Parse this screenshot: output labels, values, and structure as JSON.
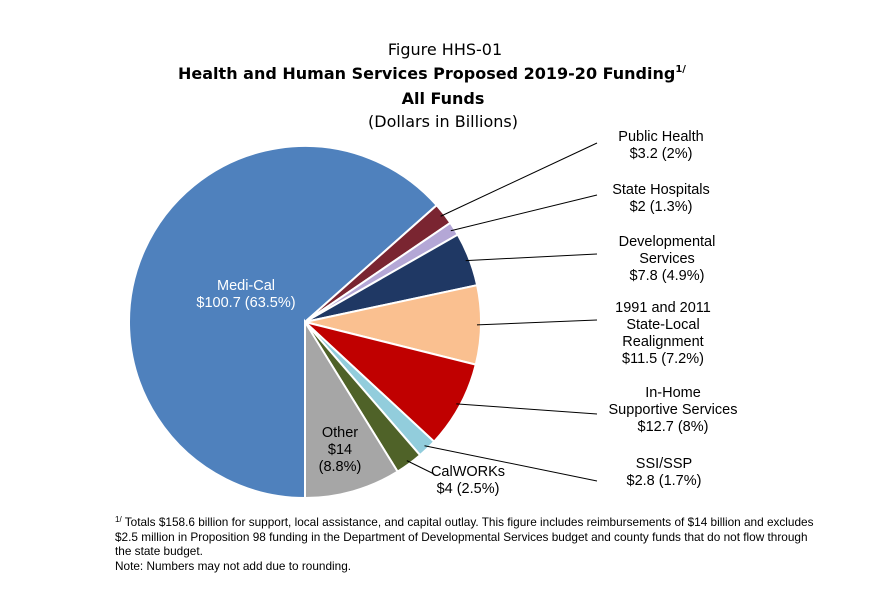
{
  "chart_data": {
    "type": "pie",
    "figure_label": "Figure HHS-01",
    "title": "Health and Human Services Proposed 2019-20 Funding",
    "title_superscript": "1/",
    "subtitle": "All Funds",
    "units": "(Dollars in Billions)",
    "slices": [
      {
        "id": "medi-cal",
        "lines": [
          "Medi-Cal",
          "$100.7 (63.5%)"
        ],
        "value": 100.7,
        "percent": 63.5,
        "color": "#4f81bd",
        "label_color": "#ffffff"
      },
      {
        "id": "public-health",
        "lines": [
          "Public Health",
          "$3.2 (2%)"
        ],
        "value": 3.2,
        "percent": 2.0,
        "color": "#7a2531",
        "label_color": "#000000"
      },
      {
        "id": "state-hospitals",
        "lines": [
          "State Hospitals",
          "$2 (1.3%)"
        ],
        "value": 2.0,
        "percent": 1.3,
        "color": "#b4a7d6",
        "label_color": "#000000"
      },
      {
        "id": "developmental-services",
        "lines": [
          "Developmental",
          "Services",
          "$7.8 (4.9%)"
        ],
        "value": 7.8,
        "percent": 4.9,
        "color": "#1f3864",
        "label_color": "#000000"
      },
      {
        "id": "realignment",
        "lines": [
          "1991 and 2011",
          "State-Local",
          "Realignment",
          "$11.5 (7.2%)"
        ],
        "value": 11.5,
        "percent": 7.2,
        "color": "#fac090",
        "label_color": "#000000"
      },
      {
        "id": "ihss",
        "lines": [
          "In-Home",
          "Supportive Services",
          "$12.7 (8%)"
        ],
        "value": 12.7,
        "percent": 8.0,
        "color": "#c00000",
        "label_color": "#000000"
      },
      {
        "id": "ssi-ssp",
        "lines": [
          "SSI/SSP",
          "$2.8 (1.7%)"
        ],
        "value": 2.8,
        "percent": 1.7,
        "color": "#92cddc",
        "label_color": "#000000"
      },
      {
        "id": "calworks",
        "lines": [
          "CalWORKs",
          "$4 (2.5%)"
        ],
        "value": 4.0,
        "percent": 2.5,
        "color": "#4f6228",
        "label_color": "#000000"
      },
      {
        "id": "other",
        "lines": [
          "Other",
          "$14",
          "(8.8%)"
        ],
        "value": 14.0,
        "percent": 8.8,
        "color": "#a6a6a6",
        "label_color": "#000000"
      }
    ]
  },
  "footnote": {
    "marker": "1/",
    "text": "Totals $158.6 billion for support, local assistance, and capital outlay.  This figure includes reimbursements of $14 billion and excludes $2.5 million in Proposition 98 funding in the Department of Developmental Services budget and county funds that do not flow through the state budget.",
    "note": "Note: Numbers may not add due to rounding."
  }
}
